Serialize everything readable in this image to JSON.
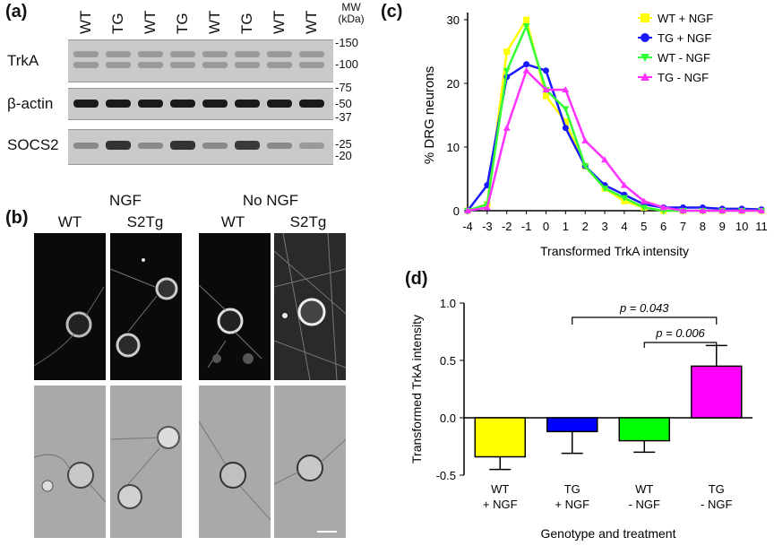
{
  "panel_a": {
    "letter": "(a)",
    "lanes": [
      "WT",
      "TG",
      "WT",
      "TG",
      "WT",
      "TG",
      "WT",
      "WT"
    ],
    "mw_header": [
      "MW",
      "(kDa)"
    ],
    "blots": [
      {
        "name": "TrkA",
        "markers": [
          "-150",
          "-100"
        ]
      },
      {
        "name": "β-actin",
        "markers": [
          "-75",
          "-50",
          "-37"
        ]
      },
      {
        "name": "SOCS2",
        "markers": [
          "-25",
          "-20"
        ]
      }
    ]
  },
  "panel_b": {
    "letter": "(b)",
    "groups": [
      "NGF",
      "No NGF"
    ],
    "columns": [
      "WT",
      "S2Tg",
      "WT",
      "S2Tg"
    ]
  },
  "panel_c": {
    "letter": "(c)",
    "legend": [
      "WT + NGF",
      "TG + NGF",
      "WT - NGF",
      "TG - NGF"
    ]
  },
  "panel_d": {
    "letter": "(d)",
    "p_values": [
      "p = 0.043",
      "p = 0.006"
    ]
  },
  "chart_data": [
    {
      "type": "line",
      "xlabel": "Transformed TrkA intensity",
      "ylabel": "% DRG neurons",
      "x": [
        -4,
        -3,
        -2,
        -1,
        0,
        1,
        2,
        3,
        4,
        5,
        6,
        7,
        8,
        9,
        10,
        11
      ],
      "xlim": [
        -4,
        11
      ],
      "ylim": [
        0,
        30
      ],
      "yticks": [
        0,
        10,
        20,
        30
      ],
      "grid": false,
      "legend_position": "top-right",
      "series": [
        {
          "name": "WT + NGF",
          "color": "#ffff00",
          "marker": "square",
          "values": [
            0,
            1,
            25,
            30,
            18,
            14,
            7,
            3.5,
            1.5,
            0.5,
            0,
            0,
            0,
            0,
            0,
            0
          ]
        },
        {
          "name": "TG + NGF",
          "color": "#1a1aff",
          "marker": "circle",
          "values": [
            0,
            4,
            21,
            23,
            22,
            13,
            7,
            4,
            2.5,
            1,
            0.5,
            0.5,
            0.5,
            0.3,
            0.3,
            0.2
          ]
        },
        {
          "name": "WT - NGF",
          "color": "#33ff33",
          "marker": "triangle-down",
          "values": [
            0,
            1,
            22,
            29,
            19,
            16,
            7,
            3.5,
            2,
            0.5,
            0,
            0,
            0,
            0,
            0,
            0
          ]
        },
        {
          "name": "TG - NGF",
          "color": "#ff33ff",
          "marker": "triangle-up",
          "values": [
            0,
            0.5,
            13,
            22,
            19,
            19,
            11,
            8,
            4,
            1.5,
            0.5,
            0,
            0,
            0,
            0,
            0
          ]
        }
      ]
    },
    {
      "type": "bar",
      "xlabel": "Genotype and treatment",
      "ylabel": "Transformed TrkA intensity",
      "categories": [
        [
          "WT",
          "+ NGF"
        ],
        [
          "TG",
          "+ NGF"
        ],
        [
          "WT",
          "- NGF"
        ],
        [
          "TG",
          "- NGF"
        ]
      ],
      "values": [
        -0.34,
        -0.12,
        -0.2,
        0.45
      ],
      "errors": [
        0.11,
        0.19,
        0.1,
        0.18
      ],
      "colors": [
        "#ffff00",
        "#0000ff",
        "#00ff00",
        "#ff00ff"
      ],
      "ylim": [
        -0.5,
        1.0
      ],
      "yticks": [
        "-0.5",
        "0.0",
        "0.5",
        "1.0"
      ]
    }
  ]
}
